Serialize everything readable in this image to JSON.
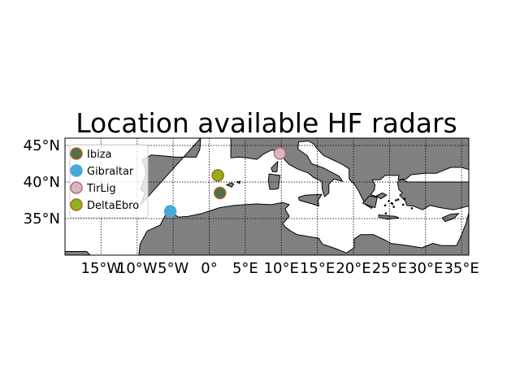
{
  "map": {
    "title": "Location available HF radars",
    "projection": "plate-carree",
    "lon_range": [
      -20,
      36
    ],
    "lat_range": [
      30,
      46
    ],
    "land_color": "#808080",
    "sea_color": "#ffffff",
    "gridlines": "dotted",
    "lat_ticks": [
      {
        "value": 45,
        "label": "45°N"
      },
      {
        "value": 40,
        "label": "40°N"
      },
      {
        "value": 35,
        "label": "35°N"
      }
    ],
    "lon_ticks": [
      {
        "value": -15,
        "label": "15°W"
      },
      {
        "value": -10,
        "label": "10°W"
      },
      {
        "value": -5,
        "label": "5°W"
      },
      {
        "value": 0,
        "label": "0°"
      },
      {
        "value": 5,
        "label": "5°E"
      },
      {
        "value": 10,
        "label": "10°E"
      },
      {
        "value": 15,
        "label": "15°E"
      },
      {
        "value": 20,
        "label": "20°E"
      },
      {
        "value": 25,
        "label": "25°E"
      },
      {
        "value": 30,
        "label": "30°E"
      },
      {
        "value": 35,
        "label": "35°E"
      }
    ],
    "legend_position": "upper-left",
    "stations": [
      {
        "name": "Ibiza",
        "lon": 1.5,
        "lat": 38.5,
        "fill": "#4e6e4e",
        "edge": "#b5651d"
      },
      {
        "name": "Gibraltar",
        "lon": -5.4,
        "lat": 36.0,
        "fill": "#4aa8d8",
        "edge": "#4aa8d8"
      },
      {
        "name": "TirLig",
        "lon": 9.8,
        "lat": 43.9,
        "fill": "#d8b8be",
        "edge": "#b07080"
      },
      {
        "name": "DeltaEbro",
        "lon": 1.2,
        "lat": 40.9,
        "fill": "#8cb31c",
        "edge": "#b5651d"
      }
    ]
  }
}
